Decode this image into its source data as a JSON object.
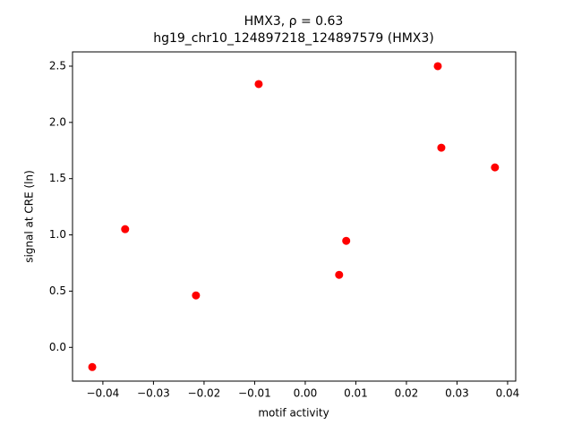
{
  "chart_data": {
    "type": "scatter",
    "title": "HMX3, ρ = 0.63",
    "subtitle": "hg19_chr10_124897218_124897579 (HMX3)",
    "x_label": "motif activity",
    "y_label": "signal at CRE (ln)",
    "color": "#ff0000",
    "x": [
      -0.0421,
      -0.0356,
      -0.0216,
      -0.0092,
      0.0067,
      0.0081,
      0.0262,
      0.0269,
      0.0375
    ],
    "values": [
      -0.175,
      1.051,
      0.462,
      2.341,
      0.645,
      0.947,
      2.5,
      1.775,
      1.6
    ],
    "xlim": [
      -0.046,
      0.0416
    ],
    "ylim": [
      -0.3,
      2.627
    ],
    "xticks": [
      {
        "value": -0.04,
        "label": "−0.04"
      },
      {
        "value": -0.03,
        "label": "−0.03"
      },
      {
        "value": -0.02,
        "label": "−0.02"
      },
      {
        "value": -0.01,
        "label": "−0.01"
      },
      {
        "value": 0,
        "label": "0.00"
      },
      0.01,
      0.02,
      0.03,
      0.04
    ],
    "yticks": [
      {
        "value": 0,
        "label": "0.0"
      },
      0.5,
      {
        "value": 1,
        "label": "1.0"
      },
      1.5,
      {
        "value": 2,
        "label": "2.0"
      },
      2.5
    ]
  }
}
